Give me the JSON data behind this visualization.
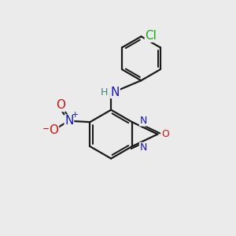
{
  "bg_color": "#ebebeb",
  "bond_color": "#1a1a1a",
  "bond_width": 1.6,
  "atom_colors": {
    "C": "#1a1a1a",
    "N": "#1414cc",
    "O": "#cc1414",
    "H": "#4a8080",
    "Cl": "#1aaa1a"
  },
  "font_size_atom": 11,
  "font_size_small": 8,
  "font_size_charge": 7
}
